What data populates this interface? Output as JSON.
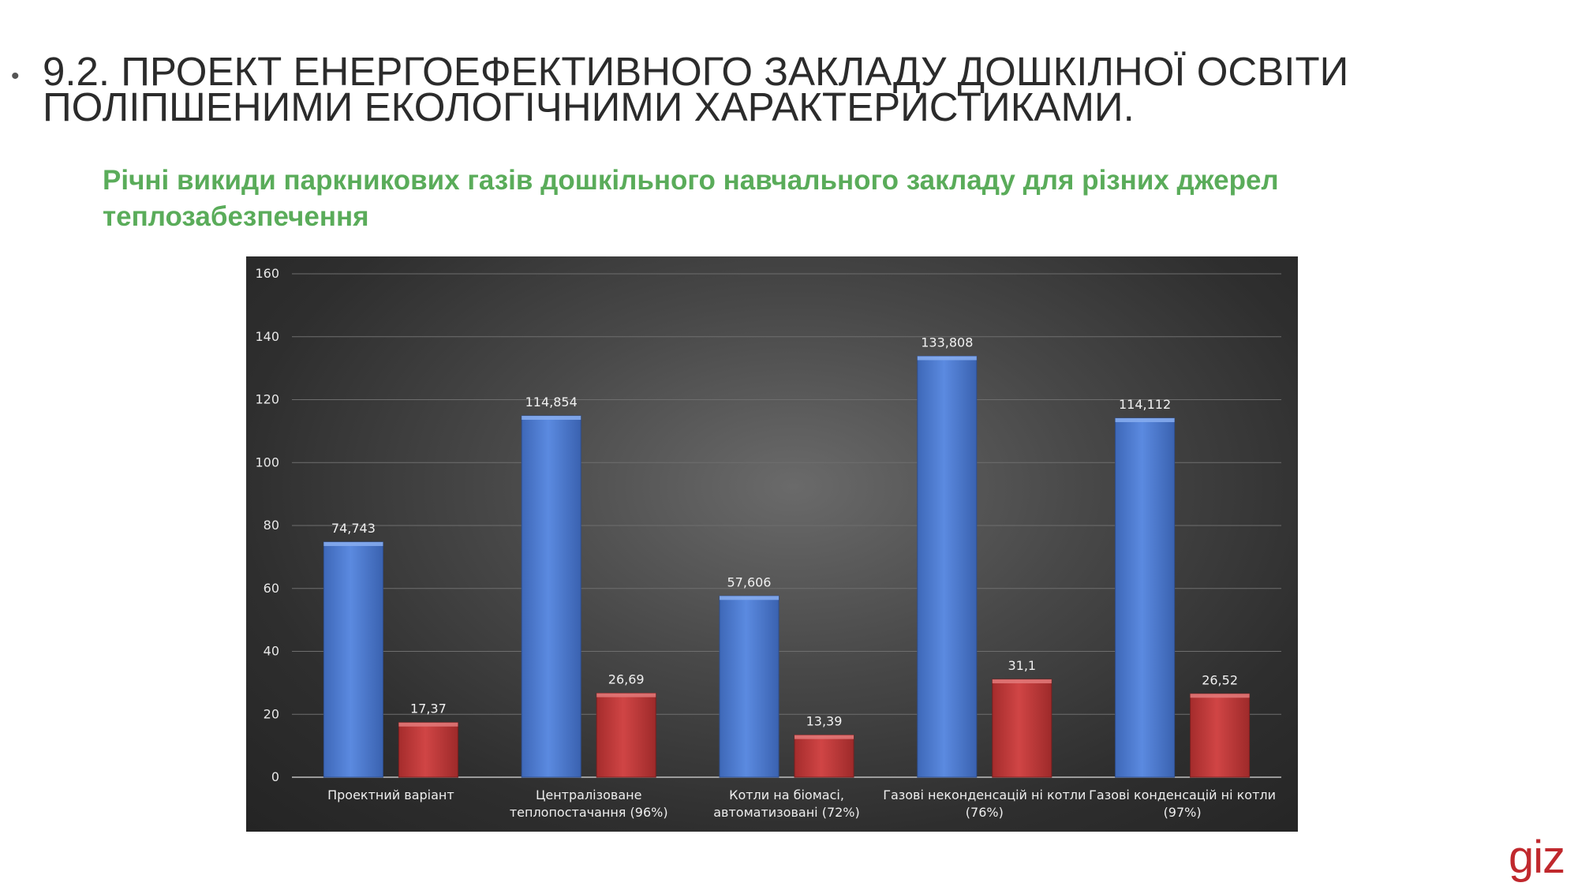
{
  "slide": {
    "bullet": "•",
    "title_line1": "9.2. ПРОЕКТ ЕНЕРГОЕФЕКТИВНОГО ЗАКЛАДУ ДОШКІЛНОЇ ОСВІТИ",
    "title_line2": "ПОЛІПШЕНИМИ ЕКОЛОГІЧНИМИ ХАРАКТЕРИСТИКАМИ.",
    "subtitle": "Річні викиди паркникових газів дошкільного навчального закладу для різних джерел теплозабезпечення",
    "logo_text": "giz"
  },
  "colors": {
    "title": "#2b2b2b",
    "subtitle": "#5aac5a",
    "series_blue": "#4f7fd6",
    "series_red": "#c23a3a",
    "logo": "#c0282d"
  },
  "chart_data": {
    "type": "bar",
    "title": "",
    "xlabel": "",
    "ylabel": "",
    "ylim": [
      0,
      160
    ],
    "yticks": [
      "0",
      "20",
      "40",
      "60",
      "80",
      "100",
      "120",
      "140",
      "160"
    ],
    "grid": true,
    "legend": "none",
    "categories": [
      [
        "Проектний варіант"
      ],
      [
        "Централізоване",
        "теплопостачання (96%)"
      ],
      [
        "Котли на біомасі,",
        "автоматизовані (72%)"
      ],
      [
        "Газові неконденсацій ні котли",
        "(76%)"
      ],
      [
        "Газові конденсацій ні котли",
        "(97%)"
      ]
    ],
    "series": [
      {
        "color": "#4f7fd6",
        "values": [
          74.743,
          114.854,
          57.606,
          133.808,
          114.112
        ],
        "labels": [
          "74,743",
          "114,854",
          "57,606",
          "133,808",
          "114,112"
        ]
      },
      {
        "color": "#c23a3a",
        "values": [
          17.37,
          26.69,
          13.39,
          31.1,
          26.52
        ],
        "labels": [
          "17,37",
          "26,69",
          "13,39",
          "31,1",
          "26,52"
        ]
      }
    ]
  }
}
